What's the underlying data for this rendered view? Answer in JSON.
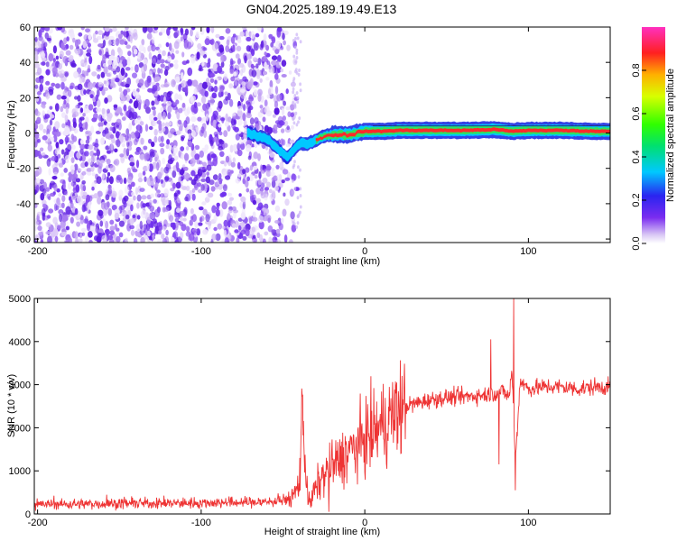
{
  "title": "GN04.2025.189.19.49.E13",
  "colors": {
    "spectral_band": "#ff2a2a",
    "snr_line": "#ee3333",
    "noise": "#7b3cf0"
  },
  "chart_data": [
    {
      "type": "heatmap",
      "xlabel": "Height of straight line (km)",
      "ylabel": "Frequency (Hz)",
      "xlim": [
        -202,
        150
      ],
      "ylim": [
        -62,
        60
      ],
      "xticks": [
        "-200",
        "-100",
        "0",
        "100"
      ],
      "xtick_values": [
        -200,
        -100,
        0,
        100
      ],
      "yticks": [
        "60",
        "40",
        "20",
        "0",
        "-20",
        "-40",
        "-60"
      ],
      "ytick_values": [
        60,
        40,
        20,
        0,
        -20,
        -40,
        -60
      ],
      "noise_region_x": [
        -202,
        -40
      ],
      "ridge": {
        "x": [
          -72,
          -60,
          -55,
          -50,
          -47,
          -44,
          -40,
          -35,
          -30,
          -25,
          -20,
          -10,
          -5,
          0,
          10,
          20,
          40,
          60,
          80,
          90,
          100,
          120,
          140,
          150
        ],
        "freq": [
          0,
          -3,
          -7,
          -12,
          -14,
          -10,
          -6,
          -6,
          -4,
          -2,
          -1,
          -1,
          0,
          1,
          1,
          1.5,
          1.5,
          1.5,
          2,
          1,
          1.5,
          1.5,
          1,
          1
        ]
      },
      "colorbar": {
        "label": "Normalized spectral amplitude",
        "ticks": [
          "0.0",
          "0.2",
          "0.4",
          "0.6",
          "0.8"
        ],
        "tick_values": [
          0,
          0.2,
          0.4,
          0.6,
          0.8
        ],
        "range": [
          0,
          1
        ]
      }
    },
    {
      "type": "line",
      "xlabel": "Height of straight line (km)",
      "ylabel": "SNR (10 * v/v)",
      "xlim": [
        -202,
        150
      ],
      "ylim": [
        0,
        5000
      ],
      "xticks": [
        "-200",
        "-100",
        "0",
        "100"
      ],
      "xtick_values": [
        -200,
        -100,
        0,
        100
      ],
      "yticks": [
        "0",
        "1000",
        "2000",
        "3000",
        "4000",
        "5000"
      ],
      "ytick_values": [
        0,
        1000,
        2000,
        3000,
        4000,
        5000
      ],
      "series": [
        {
          "x": [
            -202,
            -180,
            -150,
            -120,
            -90,
            -60,
            -45,
            -40,
            -38,
            -36,
            -34,
            -30,
            -25,
            -20,
            -15,
            -10,
            -5,
            0,
            5,
            10,
            15,
            20,
            25,
            30,
            40,
            50,
            60,
            70,
            80,
            85,
            88,
            90,
            92,
            95,
            100,
            110,
            120,
            130,
            140,
            150
          ],
          "values": [
            220,
            230,
            240,
            250,
            260,
            280,
            330,
            700,
            2500,
            900,
            250,
            600,
            900,
            1100,
            1250,
            1450,
            1550,
            1750,
            1900,
            2050,
            2200,
            2400,
            2500,
            2550,
            2650,
            2700,
            2720,
            2750,
            2800,
            2850,
            2700,
            3300,
            1200,
            3100,
            2900,
            2950,
            2950,
            2900,
            2950,
            2950
          ]
        }
      ],
      "spikes": [
        {
          "x": -38,
          "value": 2750
        },
        {
          "x": -33,
          "value": 150
        },
        {
          "x": -22,
          "value": 50
        },
        {
          "x": 77,
          "value": 4050
        },
        {
          "x": 82,
          "value": 1150
        },
        {
          "x": 91,
          "value": 5000
        },
        {
          "x": 92,
          "value": 550
        }
      ]
    }
  ]
}
